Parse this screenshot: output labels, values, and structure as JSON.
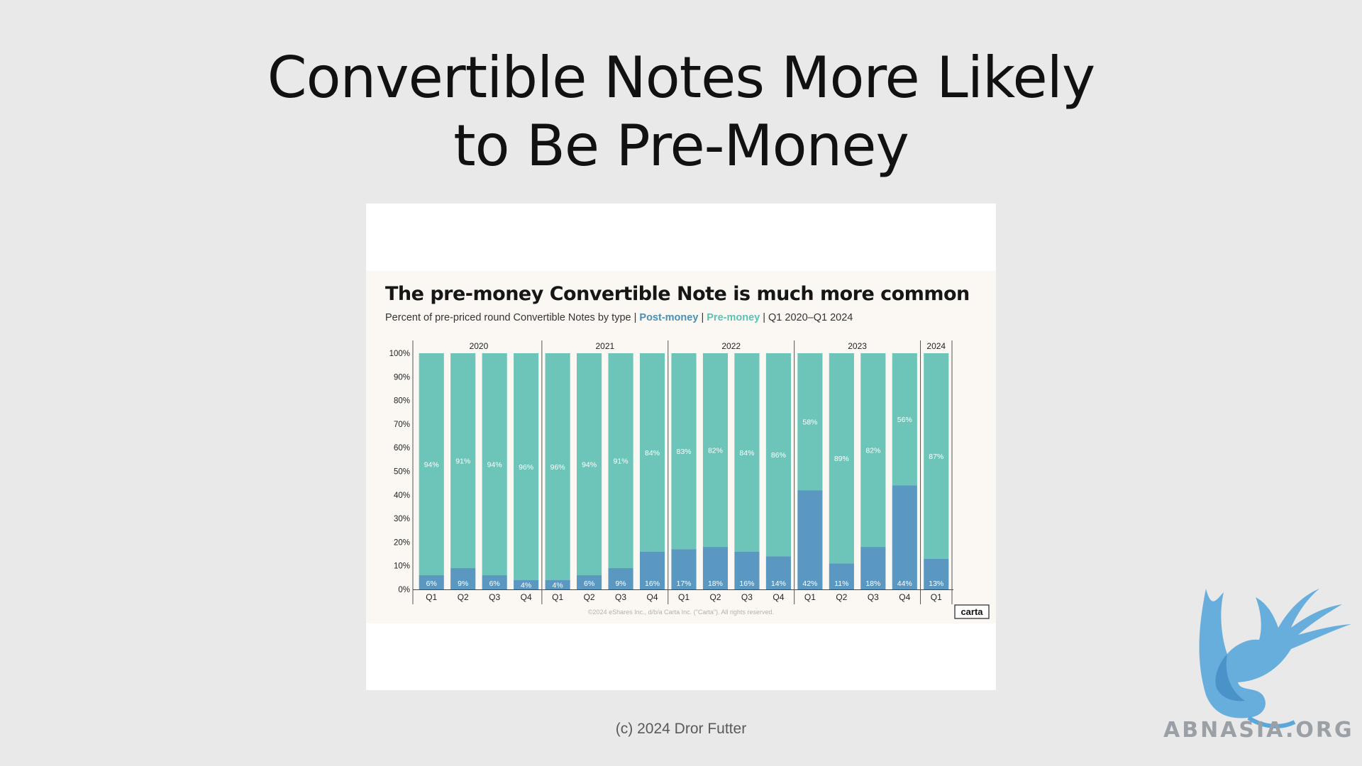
{
  "slide": {
    "title_line1": "Convertible Notes More Likely",
    "title_line2": "to Be Pre-Money",
    "footer": "(c) 2024 Dror Futter",
    "watermark": "ABNASIA.ORG"
  },
  "chart_data": {
    "type": "bar",
    "stacked": true,
    "title": "The pre-money Convertible Note is much more common",
    "subtitle_prefix": "Percent of pre-priced round Convertible Notes by type |",
    "subtitle_suffix": "| Q1 2020–Q1 2024",
    "categories": [
      "Q1",
      "Q2",
      "Q3",
      "Q4",
      "Q1",
      "Q2",
      "Q3",
      "Q4",
      "Q1",
      "Q2",
      "Q3",
      "Q4",
      "Q1",
      "Q2",
      "Q3",
      "Q4",
      "Q1"
    ],
    "year_groups": [
      {
        "year": "2020",
        "count": 4
      },
      {
        "year": "2021",
        "count": 4
      },
      {
        "year": "2022",
        "count": 4
      },
      {
        "year": "2023",
        "count": 4
      },
      {
        "year": "2024",
        "count": 1
      }
    ],
    "series": [
      {
        "name": "Post-money",
        "color": "#5b98c1",
        "values": [
          6,
          9,
          6,
          4,
          4,
          6,
          9,
          16,
          17,
          18,
          16,
          14,
          42,
          11,
          18,
          44,
          13
        ]
      },
      {
        "name": "Pre-money",
        "color": "#6cc5b8",
        "values": [
          94,
          91,
          94,
          96,
          96,
          94,
          91,
          84,
          83,
          82,
          84,
          86,
          58,
          89,
          82,
          56,
          87
        ]
      }
    ],
    "y_ticks": [
      "0%",
      "10%",
      "20%",
      "30%",
      "40%",
      "50%",
      "60%",
      "70%",
      "80%",
      "90%",
      "100%"
    ],
    "ylim": [
      0,
      100
    ],
    "copyright": "©2024 eShares Inc., d/b/a Carta Inc. (\"Carta\"). All rights reserved.",
    "brand": "carta"
  }
}
